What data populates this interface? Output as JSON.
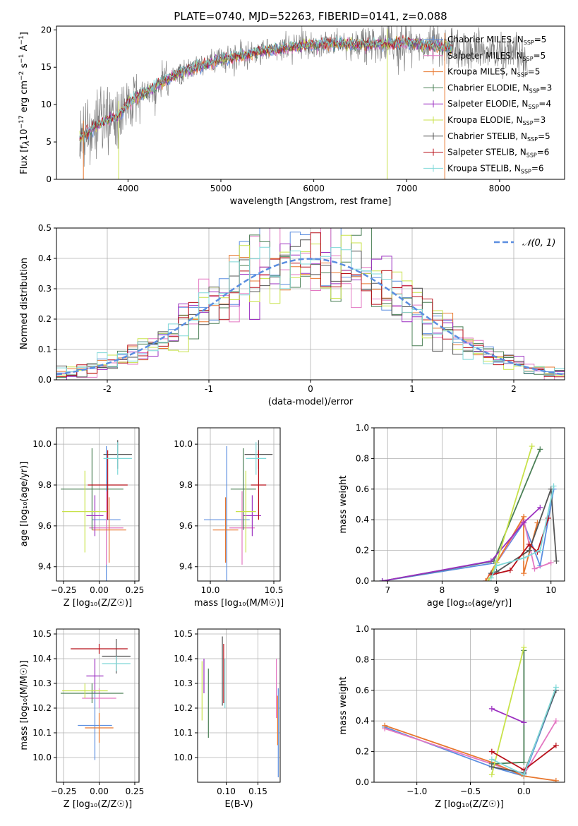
{
  "figure": {
    "title": "PLATE=0740, MJD=52263, FIBERID=0141, z=0.088"
  },
  "series_colors": {
    "Chabrier MILES": "#5b8ee0",
    "Salpeter MILES": "#e377c2",
    "Kroupa MILES": "#e8772e",
    "Chabrier ELODIE": "#4a7f55",
    "Salpeter ELODIE": "#9b2fc0",
    "Kroupa ELODIE": "#c8e24a",
    "Chabrier STELIB": "#555555",
    "Salpeter STELIB": "#b8101a",
    "Kroupa STELIB": "#7fd8d8"
  },
  "chart_data": [
    {
      "id": "spectrum",
      "type": "line",
      "title": "PLATE=0740, MJD=52263, FIBERID=0141, z=0.088",
      "xlabel": "wavelength [Angstrom, rest frame]",
      "ylabel_parts": [
        "Flux [f",
        "λ",
        "10",
        "−17",
        " erg cm",
        "−2",
        " s",
        "−1",
        " A",
        "−1",
        "]"
      ],
      "xlim": [
        3230,
        8700
      ],
      "ylim": [
        0,
        20.5
      ],
      "xticks": [
        4000,
        5000,
        6000,
        7000,
        8000
      ],
      "yticks": [
        0,
        5,
        10,
        15,
        20
      ],
      "grid": false,
      "legend_position": "top-right",
      "legend": [
        {
          "label": "Chabrier MILES",
          "n": "5"
        },
        {
          "label": "Salpeter MILES",
          "n": "5"
        },
        {
          "label": "Kroupa MILES",
          "n": "5"
        },
        {
          "label": "Chabrier ELODIE",
          "n": "3"
        },
        {
          "label": "Salpeter ELODIE",
          "n": "4"
        },
        {
          "label": "Kroupa ELODIE",
          "n": "3"
        },
        {
          "label": "Chabrier STELIB",
          "n": "5"
        },
        {
          "label": "Salpeter STELIB",
          "n": "6"
        },
        {
          "label": "Kroupa STELIB",
          "n": "6"
        }
      ],
      "legend_n_prefix": "N",
      "legend_n_sub": "SSP",
      "data_trend": {
        "x": [
          3480,
          3700,
          3900,
          4000,
          4300,
          4600,
          5000,
          5400,
          5800,
          6200,
          6600,
          7000,
          7400,
          7800,
          8200
        ],
        "y": [
          5.5,
          7.5,
          8.5,
          10.2,
          12.5,
          14.5,
          16.0,
          17.0,
          17.8,
          18.2,
          18.0,
          18.3,
          17.6,
          17.0,
          16.6
        ]
      },
      "data_range_x": [
        3480,
        8300
      ],
      "spikes": [
        {
          "x": 3520,
          "color": "#e8772e"
        },
        {
          "x": 3900,
          "color": "#c8e24a"
        },
        {
          "x": 6790,
          "color": "#c8e24a"
        },
        {
          "x": 7410,
          "color": "#e8772e"
        }
      ]
    },
    {
      "id": "residuals",
      "type": "histogram",
      "xlabel": "(data-model)/error",
      "ylabel": "Normed distribution",
      "xlim": [
        -2.5,
        2.5
      ],
      "ylim": [
        0,
        0.5
      ],
      "xticks": [
        -2,
        -1,
        0,
        1,
        2
      ],
      "yticks": [
        0.0,
        0.1,
        0.2,
        0.3,
        0.4,
        0.5
      ],
      "grid": true,
      "bin_width": 0.1,
      "legend_position": "top-right",
      "reference": {
        "label": "𝒩(0, 1)",
        "color": "#5b8ee0",
        "mu": 0,
        "sigma": 1
      }
    },
    {
      "id": "age-vs-Z",
      "type": "errorbar",
      "xlabel": "Z [log₁₀(Z/Z☉)]",
      "ylabel": "age  [log₁₀(age/yr)]",
      "xlim": [
        -0.3,
        0.28
      ],
      "ylim": [
        9.33,
        10.08
      ],
      "xticks": [
        -0.25,
        0.0,
        0.25
      ],
      "xtick_labels": [
        "−0.25",
        "0.00",
        "0.25"
      ],
      "yticks": [
        9.4,
        9.6,
        9.8,
        10.0
      ],
      "grid": true,
      "points": [
        {
          "series": "Chabrier MILES",
          "x": 0.05,
          "xerr": 0.1,
          "y": 9.63,
          "yerr": 0.36
        },
        {
          "series": "Salpeter MILES",
          "x": 0.05,
          "xerr": 0.12,
          "y": 9.59,
          "yerr": 0.18
        },
        {
          "series": "Kroupa MILES",
          "x": 0.07,
          "xerr": 0.12,
          "y": 9.58,
          "yerr": 0.16
        },
        {
          "series": "Chabrier ELODIE",
          "x": -0.05,
          "xerr": 0.22,
          "y": 9.78,
          "yerr": 0.2
        },
        {
          "series": "Salpeter ELODIE",
          "x": -0.03,
          "xerr": 0.06,
          "y": 9.65,
          "yerr": 0.1
        },
        {
          "series": "Kroupa ELODIE",
          "x": -0.1,
          "xerr": 0.16,
          "y": 9.67,
          "yerr": 0.2
        },
        {
          "series": "Chabrier STELIB",
          "x": 0.13,
          "xerr": 0.1,
          "y": 9.95,
          "yerr": 0.07
        },
        {
          "series": "Salpeter STELIB",
          "x": 0.06,
          "xerr": 0.14,
          "y": 9.8,
          "yerr": 0.17
        },
        {
          "series": "Kroupa STELIB",
          "x": 0.13,
          "xerr": 0.1,
          "y": 9.93,
          "yerr": 0.08
        }
      ]
    },
    {
      "id": "age-vs-mass",
      "type": "errorbar",
      "xlabel": "mass [log₁₀(M/M☉)]",
      "ylabel": "",
      "xlim": [
        9.9,
        10.55
      ],
      "ylim": [
        9.33,
        10.08
      ],
      "xticks": [
        10.0,
        10.5
      ],
      "xtick_labels": [
        "10.0",
        "10.5"
      ],
      "yticks": [
        9.4,
        9.6,
        9.8,
        10.0
      ],
      "grid": true,
      "points": [
        {
          "series": "Chabrier MILES",
          "x": 10.13,
          "xerr": 0.18,
          "y": 9.63,
          "yerr": 0.36
        },
        {
          "series": "Salpeter MILES",
          "x": 10.25,
          "xerr": 0.1,
          "y": 9.59,
          "yerr": 0.18
        },
        {
          "series": "Kroupa MILES",
          "x": 10.12,
          "xerr": 0.1,
          "y": 9.58,
          "yerr": 0.16
        },
        {
          "series": "Chabrier ELODIE",
          "x": 10.26,
          "xerr": 0.1,
          "y": 9.78,
          "yerr": 0.2
        },
        {
          "series": "Salpeter ELODIE",
          "x": 10.33,
          "xerr": 0.07,
          "y": 9.65,
          "yerr": 0.1
        },
        {
          "series": "Kroupa ELODIE",
          "x": 10.28,
          "xerr": 0.08,
          "y": 9.67,
          "yerr": 0.2
        },
        {
          "series": "Chabrier STELIB",
          "x": 10.38,
          "xerr": 0.11,
          "y": 9.95,
          "yerr": 0.07
        },
        {
          "series": "Salpeter STELIB",
          "x": 10.38,
          "xerr": 0.06,
          "y": 9.8,
          "yerr": 0.17
        },
        {
          "series": "Kroupa STELIB",
          "x": 10.36,
          "xerr": 0.08,
          "y": 9.93,
          "yerr": 0.08
        }
      ]
    },
    {
      "id": "weight-vs-age",
      "type": "line",
      "xlabel": "age  [log₁₀(age/yr)]",
      "ylabel": "mass weight",
      "xlim": [
        6.75,
        10.25
      ],
      "ylim": [
        0,
        1
      ],
      "xticks": [
        7,
        8,
        9,
        10
      ],
      "yticks": [
        0.0,
        0.2,
        0.4,
        0.6,
        0.8,
        1.0
      ],
      "grid": true,
      "series": [
        {
          "name": "Chabrier MILES",
          "x": [
            6.9,
            9.0,
            9.5,
            9.8,
            10.05
          ],
          "y": [
            0.0,
            0.12,
            0.38,
            0.1,
            0.6
          ]
        },
        {
          "name": "Salpeter MILES",
          "x": [
            8.8,
            9.0,
            9.5,
            9.7,
            10.0
          ],
          "y": [
            0.0,
            0.12,
            0.4,
            0.08,
            0.12
          ]
        },
        {
          "name": "Kroupa MILES",
          "x": [
            8.8,
            9.0,
            9.5,
            9.5,
            9.75
          ],
          "y": [
            0.0,
            0.12,
            0.42,
            0.05,
            0.38
          ]
        },
        {
          "name": "Chabrier ELODIE",
          "x": [
            6.9,
            8.95,
            9.8
          ],
          "y": [
            0.0,
            0.13,
            0.86
          ]
        },
        {
          "name": "Salpeter ELODIE",
          "x": [
            6.9,
            8.9,
            9.5,
            9.8
          ],
          "y": [
            0.0,
            0.13,
            0.38,
            0.48
          ]
        },
        {
          "name": "Kroupa ELODIE",
          "x": [
            8.85,
            9.0,
            9.65
          ],
          "y": [
            0.0,
            0.12,
            0.88
          ]
        },
        {
          "name": "Chabrier STELIB",
          "x": [
            8.9,
            9.0,
            9.6,
            10.0,
            10.1
          ],
          "y": [
            0.05,
            0.06,
            0.2,
            0.6,
            0.13
          ]
        },
        {
          "name": "Salpeter STELIB",
          "x": [
            8.9,
            9.25,
            9.6,
            9.75,
            9.95
          ],
          "y": [
            0.04,
            0.07,
            0.24,
            0.19,
            0.41
          ]
        },
        {
          "name": "Kroupa STELIB",
          "x": [
            8.9,
            9.0,
            9.5,
            9.8,
            10.05
          ],
          "y": [
            0.02,
            0.1,
            0.15,
            0.2,
            0.62
          ]
        }
      ]
    },
    {
      "id": "mass-vs-Z",
      "type": "errorbar",
      "xlabel": "Z [log₁₀(Z/Z☉)]",
      "ylabel": "mass [log₁₀(M/M☉)]",
      "xlim": [
        -0.3,
        0.28
      ],
      "ylim": [
        9.9,
        10.52
      ],
      "xticks": [
        -0.25,
        0.0,
        0.25
      ],
      "xtick_labels": [
        "−0.25",
        "0.00",
        "0.25"
      ],
      "yticks": [
        10.0,
        10.1,
        10.2,
        10.3,
        10.4,
        10.5
      ],
      "grid": true,
      "points": [
        {
          "series": "Chabrier MILES",
          "x": -0.03,
          "xerr": 0.12,
          "y": 10.13,
          "yerr": 0.14
        },
        {
          "series": "Salpeter MILES",
          "x": 0.0,
          "xerr": 0.12,
          "y": 10.24,
          "yerr": 0.04
        },
        {
          "series": "Kroupa MILES",
          "x": 0.0,
          "xerr": 0.1,
          "y": 10.12,
          "yerr": 0.06
        },
        {
          "series": "Chabrier ELODIE",
          "x": -0.05,
          "xerr": 0.22,
          "y": 10.26,
          "yerr": 0.04
        },
        {
          "series": "Salpeter ELODIE",
          "x": -0.03,
          "xerr": 0.06,
          "y": 10.33,
          "yerr": 0.07
        },
        {
          "series": "Kroupa ELODIE",
          "x": -0.1,
          "xerr": 0.16,
          "y": 10.27,
          "yerr": 0.03
        },
        {
          "series": "Chabrier STELIB",
          "x": 0.12,
          "xerr": 0.1,
          "y": 10.41,
          "yerr": 0.07
        },
        {
          "series": "Salpeter STELIB",
          "x": 0.0,
          "xerr": 0.2,
          "y": 10.44,
          "yerr": 0.02
        },
        {
          "series": "Kroupa STELIB",
          "x": 0.12,
          "xerr": 0.1,
          "y": 10.38,
          "yerr": 0.03
        }
      ]
    },
    {
      "id": "mass-vs-ebv",
      "type": "errorbar",
      "xlabel": "E(B-V)",
      "ylabel": "",
      "xlim": [
        0.055,
        0.185
      ],
      "ylim": [
        9.9,
        10.52
      ],
      "xticks": [
        0.1,
        0.15
      ],
      "xtick_labels": [
        "0.10",
        "0.15"
      ],
      "yticks": [
        10.0,
        10.1,
        10.2,
        10.3,
        10.4,
        10.5
      ],
      "grid": true,
      "points": [
        {
          "series": "Chabrier MILES",
          "x": 0.182,
          "xerr": 0.0,
          "y": 10.1,
          "yerr": 0.18
        },
        {
          "series": "Salpeter MILES",
          "x": 0.179,
          "xerr": 0.0,
          "y": 10.28,
          "yerr": 0.12
        },
        {
          "series": "Kroupa MILES",
          "x": 0.181,
          "xerr": 0.0,
          "y": 10.15,
          "yerr": 0.1
        },
        {
          "series": "Chabrier ELODIE",
          "x": 0.072,
          "xerr": 0.0,
          "y": 10.22,
          "yerr": 0.14
        },
        {
          "series": "Salpeter ELODIE",
          "x": 0.065,
          "xerr": 0.0,
          "y": 10.33,
          "yerr": 0.07
        },
        {
          "series": "Kroupa ELODIE",
          "x": 0.062,
          "xerr": 0.0,
          "y": 10.27,
          "yerr": 0.12
        },
        {
          "series": "Chabrier STELIB",
          "x": 0.094,
          "xerr": 0.0,
          "y": 10.35,
          "yerr": 0.14
        },
        {
          "series": "Salpeter STELIB",
          "x": 0.096,
          "xerr": 0.0,
          "y": 10.34,
          "yerr": 0.12
        },
        {
          "series": "Kroupa STELIB",
          "x": 0.098,
          "xerr": 0.0,
          "y": 10.3,
          "yerr": 0.1
        }
      ]
    },
    {
      "id": "weight-vs-Z",
      "type": "line",
      "xlabel": "Z [log₁₀(Z/Z☉)]",
      "ylabel": "mass weight",
      "xlim": [
        -1.4,
        0.38
      ],
      "ylim": [
        0,
        1
      ],
      "xticks": [
        -1.0,
        -0.5,
        0.0
      ],
      "xtick_labels": [
        "−1.0",
        "−0.5",
        "0.0"
      ],
      "yticks": [
        0.0,
        0.2,
        0.4,
        0.6,
        0.8,
        1.0
      ],
      "grid": true,
      "series": [
        {
          "name": "Chabrier MILES",
          "x": [
            -1.3,
            -0.3,
            0.0,
            0.3
          ],
          "y": [
            0.36,
            0.1,
            0.04,
            0.6
          ]
        },
        {
          "name": "Salpeter MILES",
          "x": [
            -1.3,
            -0.3,
            0.0,
            0.3
          ],
          "y": [
            0.35,
            0.12,
            0.05,
            0.4
          ]
        },
        {
          "name": "Kroupa MILES",
          "x": [
            -1.3,
            -0.3,
            0.0,
            0.3
          ],
          "y": [
            0.37,
            0.13,
            0.04,
            0.01
          ]
        },
        {
          "name": "Chabrier ELODIE",
          "x": [
            -0.3,
            0.0,
            0.0
          ],
          "y": [
            0.12,
            0.13,
            0.86
          ]
        },
        {
          "name": "Salpeter ELODIE",
          "x": [
            -0.3,
            0.0
          ],
          "y": [
            0.48,
            0.39
          ]
        },
        {
          "name": "Kroupa ELODIE",
          "x": [
            -0.3,
            0.0
          ],
          "y": [
            0.05,
            0.88
          ]
        },
        {
          "name": "Chabrier STELIB",
          "x": [
            -0.3,
            0.0,
            0.3
          ],
          "y": [
            0.1,
            0.06,
            0.6
          ]
        },
        {
          "name": "Salpeter STELIB",
          "x": [
            -0.3,
            0.0,
            0.3
          ],
          "y": [
            0.2,
            0.08,
            0.24
          ]
        },
        {
          "name": "Kroupa STELIB",
          "x": [
            -0.3,
            0.0,
            0.3
          ],
          "y": [
            0.15,
            0.05,
            0.62
          ]
        }
      ]
    }
  ]
}
